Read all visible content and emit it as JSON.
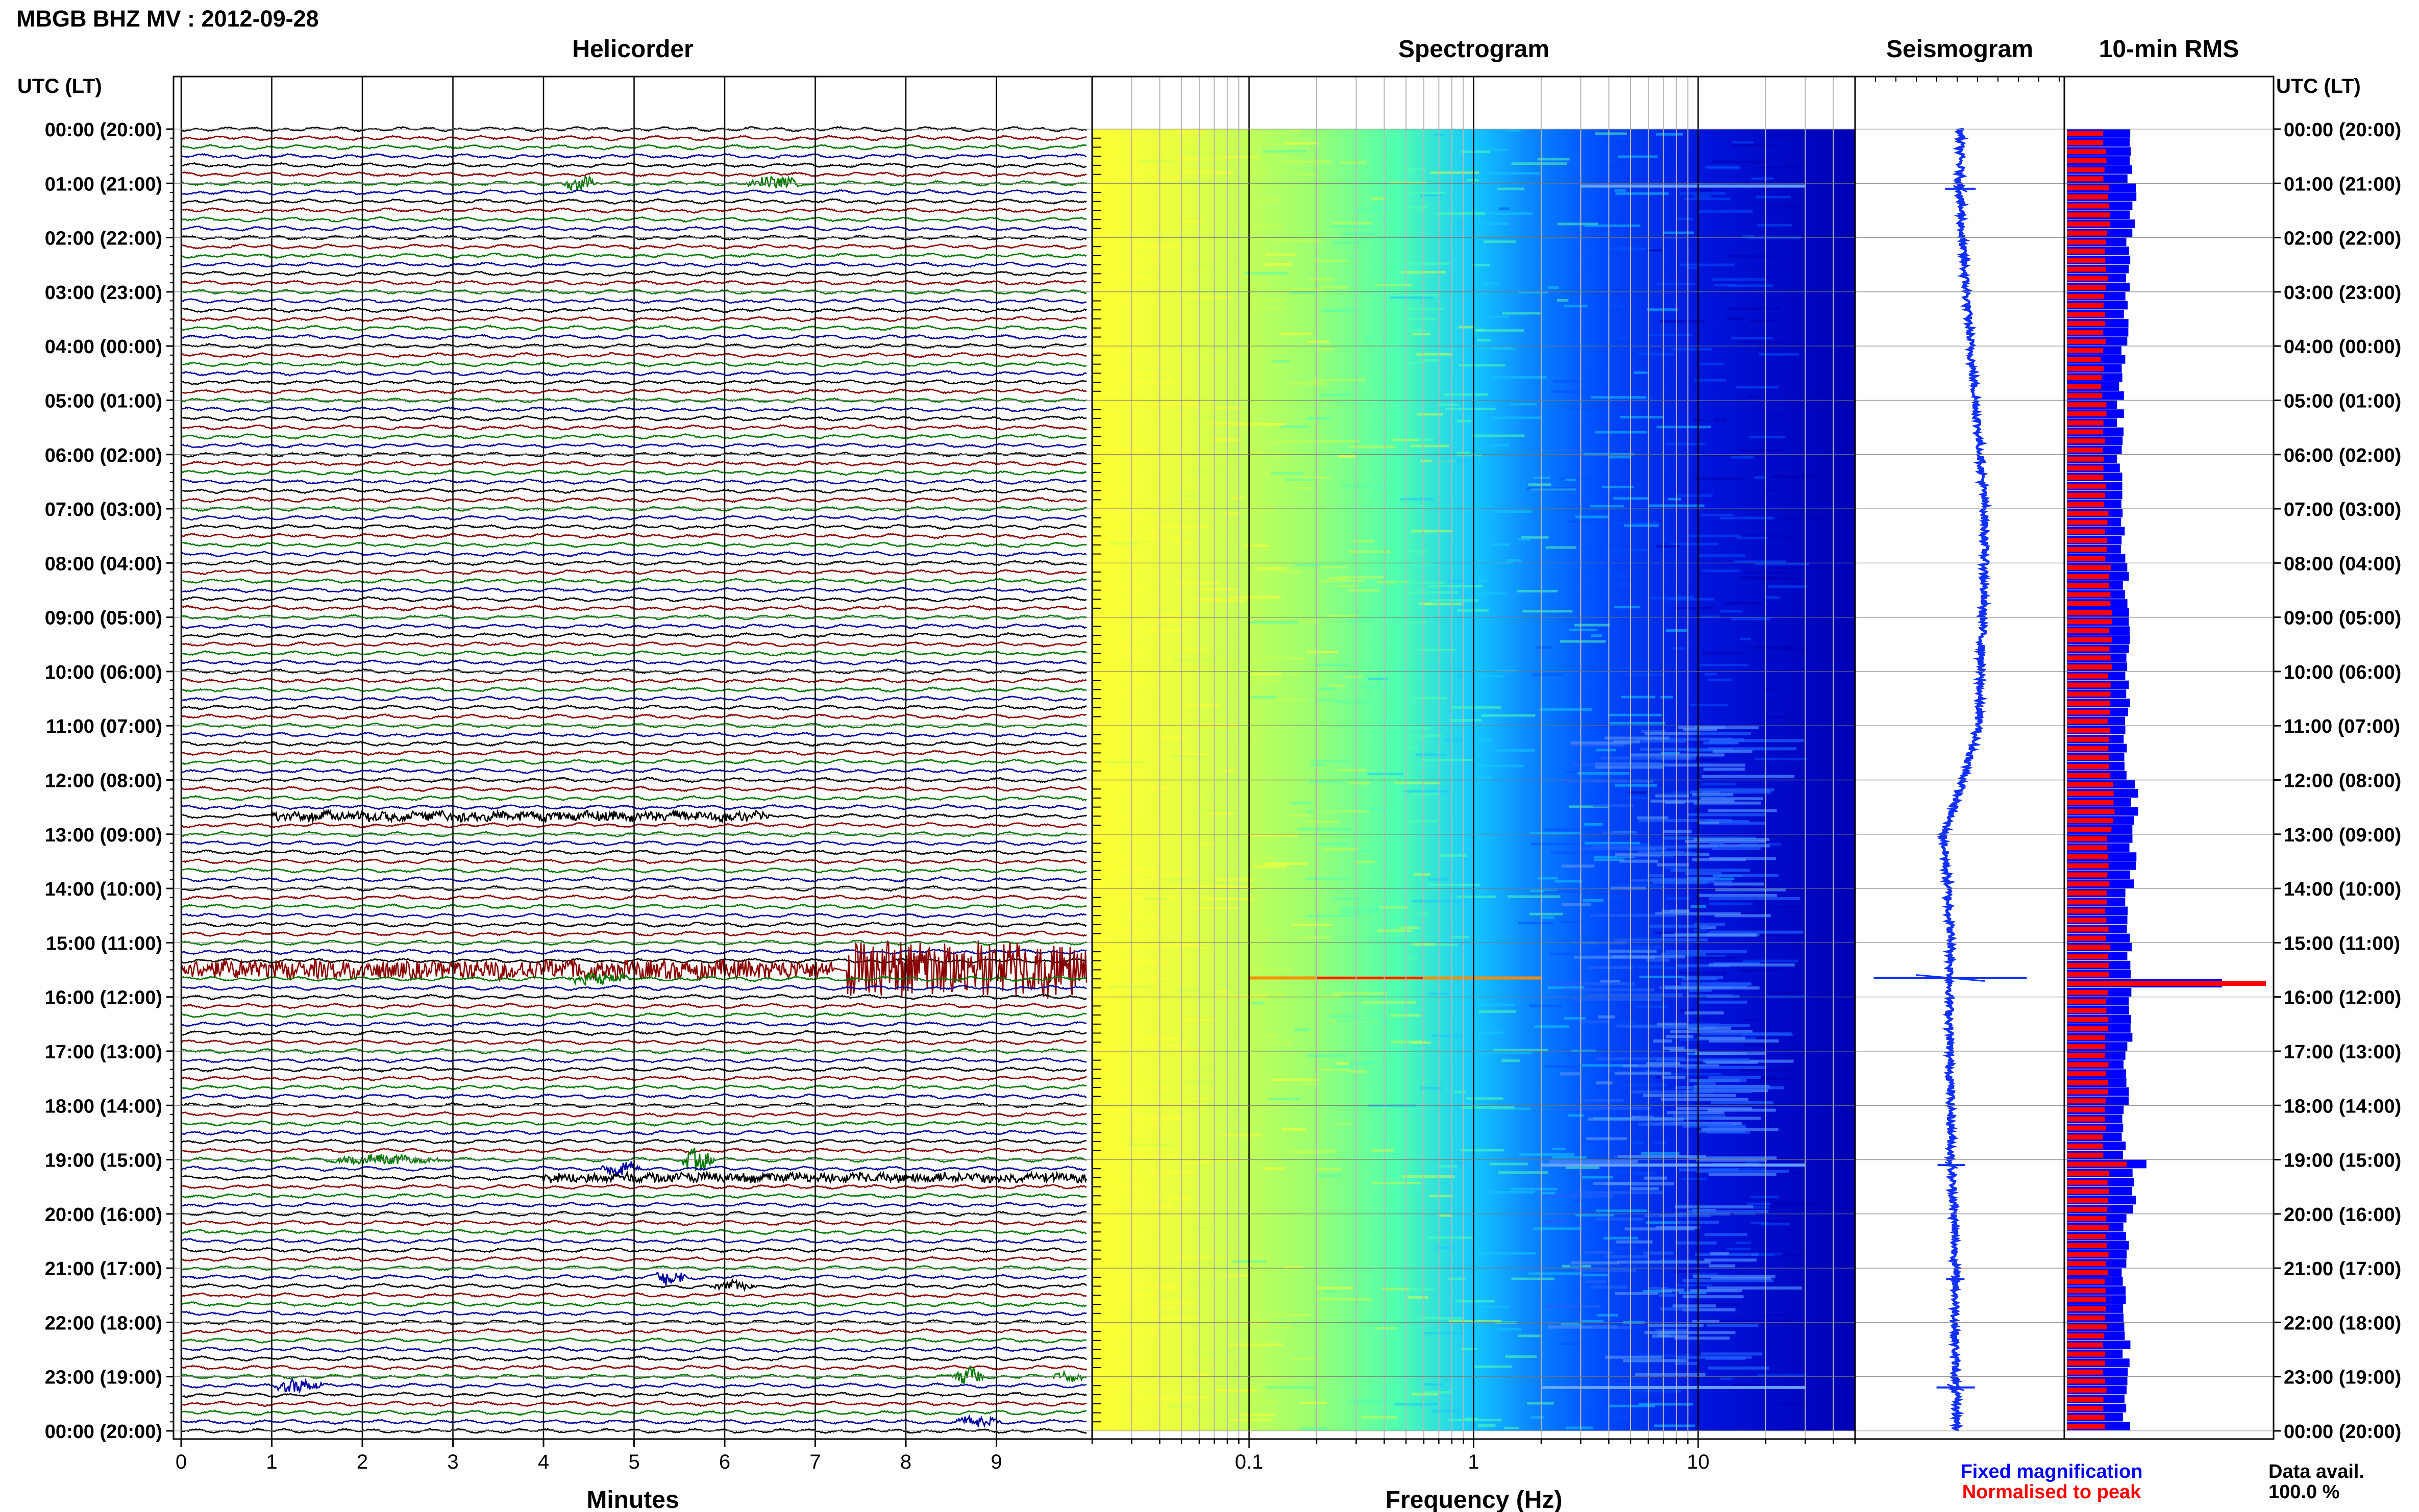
{
  "header": {
    "station_title": "MBGB BHZ MV : 2012-09-28",
    "panel_titles": [
      "Helicorder",
      "Spectrogram",
      "Seismogram",
      "10-min RMS"
    ],
    "left_axis_heading": "UTC (LT)",
    "right_axis_heading": "UTC (LT)"
  },
  "footer": {
    "fixed_magnification": "Fixed magnification",
    "normalised_to_peak": "Normalised to peak",
    "data_avail_label": "Data avail.",
    "data_avail_value": "100.0 %"
  },
  "colors": {
    "trace_colors": [
      "#000000",
      "#8b0000",
      "#007a00",
      "#0000a0"
    ],
    "seismogram": "#1030ff",
    "rms_fixed": "#0000ff",
    "rms_normalised": "#ff0000",
    "legend_fixed": "#0000ff",
    "legend_normalised": "#ff0000"
  },
  "chart_data": [
    {
      "type": "line",
      "panel": "Helicorder",
      "xlabel": "Minutes",
      "x_ticks": [
        "0",
        "1",
        "2",
        "3",
        "4",
        "5",
        "6",
        "7",
        "8",
        "9"
      ],
      "xlim": [
        0,
        10
      ],
      "y_ticks": [
        "00:00 (20:00)",
        "01:00 (21:00)",
        "02:00 (22:00)",
        "03:00 (23:00)",
        "04:00 (00:00)",
        "05:00 (01:00)",
        "06:00 (02:00)",
        "07:00 (03:00)",
        "08:00 (04:00)",
        "09:00 (05:00)",
        "10:00 (06:00)",
        "11:00 (07:00)",
        "12:00 (08:00)",
        "13:00 (09:00)",
        "14:00 (10:00)",
        "15:00 (11:00)",
        "16:00 (12:00)",
        "17:00 (13:00)",
        "18:00 (14:00)",
        "19:00 (15:00)",
        "20:00 (16:00)",
        "21:00 (17:00)",
        "22:00 (18:00)",
        "23:00 (19:00)",
        "00:00 (20:00)"
      ],
      "rows_per_hour": 6,
      "row_minutes": 10,
      "grid": true,
      "events": [
        {
          "hour": 1.0,
          "minute": 4.2,
          "duration": 0.4,
          "amp": 2.5
        },
        {
          "hour": 1.0,
          "minute": 6.2,
          "duration": 0.7,
          "amp": 2.0
        },
        {
          "hour": 10.1,
          "minute": 4.6,
          "duration": 0.4,
          "amp": 1.3
        },
        {
          "hour": 10.1,
          "minute": 7.1,
          "duration": 0.4,
          "amp": 1.2
        },
        {
          "hour": 12.1,
          "minute": 2.5,
          "duration": 0.8,
          "amp": 1.4
        },
        {
          "hour": 12.7,
          "minute": 1.0,
          "duration": 5.5,
          "amp": 1.4
        },
        {
          "hour": 15.5,
          "minute": 0.0,
          "duration": 7.2,
          "amp": 3.0
        },
        {
          "hour": 15.5,
          "minute": 7.35,
          "duration": 2.65,
          "amp": 9.0
        },
        {
          "hour": 15.67,
          "minute": 4.2,
          "duration": 0.8,
          "amp": 1.8
        },
        {
          "hour": 19.0,
          "minute": 1.5,
          "duration": 1.5,
          "amp": 1.5
        },
        {
          "hour": 19.0,
          "minute": 5.5,
          "duration": 0.4,
          "amp": 4.0
        },
        {
          "hour": 19.17,
          "minute": 4.6,
          "duration": 0.5,
          "amp": 2.6
        },
        {
          "hour": 19.33,
          "minute": 4.0,
          "duration": 6.0,
          "amp": 1.4
        },
        {
          "hour": 21.17,
          "minute": 5.2,
          "duration": 0.4,
          "amp": 2.8
        },
        {
          "hour": 21.33,
          "minute": 5.8,
          "duration": 0.6,
          "amp": 1.4
        },
        {
          "hour": 23.0,
          "minute": 8.5,
          "duration": 0.4,
          "amp": 3.0
        },
        {
          "hour": 23.0,
          "minute": 9.6,
          "duration": 0.4,
          "amp": 1.5
        },
        {
          "hour": 23.17,
          "minute": 1.0,
          "duration": 0.6,
          "amp": 2.4
        },
        {
          "hour": 23.83,
          "minute": 8.5,
          "duration": 0.6,
          "amp": 1.6
        }
      ]
    },
    {
      "type": "heatmap",
      "panel": "Spectrogram",
      "xlabel": "Frequency (Hz)",
      "x_scale": "log",
      "x_ticks": [
        0.1,
        1,
        10
      ],
      "x_tick_labels": [
        "0.1",
        "1",
        "10"
      ],
      "xlim": [
        0.02,
        50
      ],
      "ylim_hours": [
        0,
        24
      ],
      "colormap": [
        "#ffff33",
        "#c8ff50",
        "#50ffb0",
        "#14c8ff",
        "#0050ff",
        "#0000b4"
      ],
      "features": [
        {
          "hour": 15.65,
          "f_low": 0.1,
          "f_high": 2,
          "level": 0.97
        },
        {
          "hour": 1.05,
          "f_low": 3,
          "f_high": 30,
          "level": 0.45
        },
        {
          "hour": 23.2,
          "f_low": 2,
          "f_high": 30,
          "level": 0.45
        },
        {
          "hour": 19.1,
          "f_low": 2,
          "f_high": 30,
          "level": 0.4
        }
      ]
    },
    {
      "type": "line",
      "panel": "Seismogram",
      "hours": [
        0,
        1,
        2,
        3,
        4,
        5,
        6,
        7,
        8,
        9,
        10,
        11,
        12,
        13,
        14,
        15,
        16,
        17,
        18,
        19,
        20,
        21,
        22,
        23,
        24
      ],
      "offset": [
        0.05,
        0.05,
        0.08,
        0.15,
        0.22,
        0.3,
        0.38,
        0.45,
        0.45,
        0.42,
        0.38,
        0.35,
        0.1,
        -0.22,
        -0.15,
        -0.1,
        -0.12,
        -0.12,
        -0.1,
        -0.1,
        -0.05,
        -0.03,
        -0.03,
        -0.03,
        0.0
      ],
      "spikes": [
        {
          "hour": 15.65,
          "amp": 1.0
        },
        {
          "hour": 1.1,
          "amp": 0.2
        },
        {
          "hour": 19.1,
          "amp": 0.18
        },
        {
          "hour": 23.2,
          "amp": 0.25
        },
        {
          "hour": 21.2,
          "amp": 0.12
        }
      ]
    },
    {
      "type": "bar",
      "panel": "10-min RMS",
      "orientation": "horizontal",
      "bins_per_hour": 6,
      "hours": [
        0,
        1,
        2,
        3,
        4,
        5,
        6,
        7,
        8,
        9,
        10,
        11,
        12,
        13,
        14,
        15,
        16,
        17,
        18,
        19,
        20,
        21,
        22,
        23
      ],
      "fixed_magnification": [
        0.32,
        0.33,
        0.31,
        0.3,
        0.28,
        0.27,
        0.27,
        0.28,
        0.3,
        0.31,
        0.3,
        0.3,
        0.34,
        0.33,
        0.3,
        0.31,
        0.32,
        0.3,
        0.28,
        0.34,
        0.3,
        0.29,
        0.3,
        0.3
      ],
      "normalised_to_peak": [
        0.19,
        0.21,
        0.2,
        0.19,
        0.18,
        0.19,
        0.19,
        0.2,
        0.22,
        0.22,
        0.21,
        0.21,
        0.23,
        0.21,
        0.2,
        0.21,
        0.2,
        0.2,
        0.19,
        0.21,
        0.2,
        0.2,
        0.19,
        0.19
      ],
      "peak": {
        "hour": 15.65,
        "fixed": 0.78,
        "normalised": 1.0
      },
      "secondary_peak": {
        "hour": 19.0,
        "fixed": 0.4,
        "normalised": 0.3
      }
    }
  ]
}
